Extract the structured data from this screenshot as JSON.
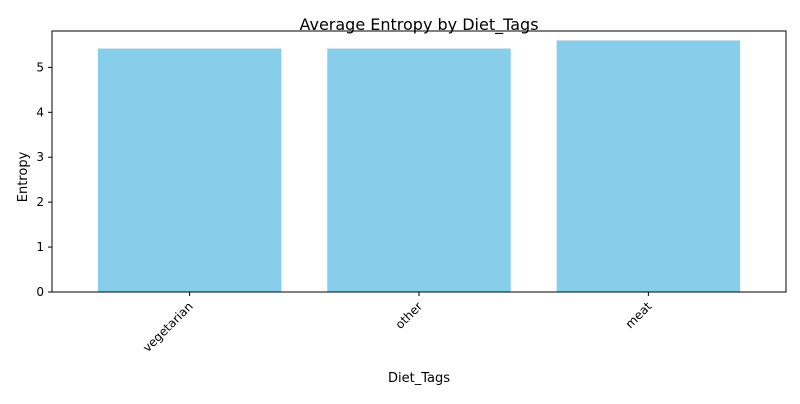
{
  "chart_data": {
    "type": "bar",
    "title": "Average Entropy by Diet_Tags",
    "xlabel": "Diet_Tags",
    "ylabel": "Entropy",
    "categories": [
      "vegetarian",
      "other",
      "meat"
    ],
    "values": [
      5.42,
      5.42,
      5.6
    ],
    "ylim": [
      0,
      5.81
    ],
    "yticks": [
      0,
      1,
      2,
      3,
      4,
      5
    ],
    "bar_color": "#87CEEB",
    "grid": false,
    "legend": "none"
  }
}
